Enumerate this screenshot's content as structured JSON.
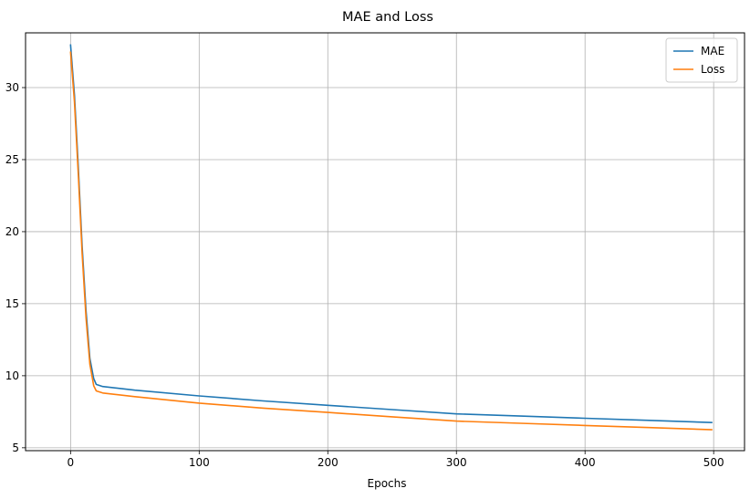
{
  "chart_data": {
    "type": "line",
    "title": "MAE and Loss",
    "xlabel": "Epochs",
    "ylabel": "",
    "xlim": [
      -35,
      524
    ],
    "ylim": [
      4.8,
      33.8
    ],
    "xticks": [
      0,
      100,
      200,
      300,
      400,
      500
    ],
    "yticks": [
      5,
      10,
      15,
      20,
      25,
      30
    ],
    "grid": true,
    "legend_position": "top-right",
    "series": [
      {
        "name": "MAE",
        "color": "#1f77b4",
        "points": [
          [
            0,
            33.0
          ],
          [
            3,
            29.5
          ],
          [
            6,
            24.5
          ],
          [
            9,
            19.0
          ],
          [
            12,
            14.5
          ],
          [
            15,
            11.2
          ],
          [
            18,
            9.8
          ],
          [
            20,
            9.4
          ],
          [
            25,
            9.25
          ],
          [
            50,
            9.0
          ],
          [
            100,
            8.6
          ],
          [
            150,
            8.25
          ],
          [
            200,
            7.95
          ],
          [
            250,
            7.65
          ],
          [
            300,
            7.35
          ],
          [
            350,
            7.2
          ],
          [
            400,
            7.05
          ],
          [
            450,
            6.9
          ],
          [
            499,
            6.75
          ]
        ]
      },
      {
        "name": "Loss",
        "color": "#ff7f0e",
        "points": [
          [
            0,
            32.5
          ],
          [
            3,
            29.0
          ],
          [
            6,
            24.0
          ],
          [
            9,
            18.5
          ],
          [
            12,
            14.0
          ],
          [
            15,
            10.8
          ],
          [
            18,
            9.3
          ],
          [
            20,
            8.95
          ],
          [
            25,
            8.8
          ],
          [
            50,
            8.55
          ],
          [
            100,
            8.1
          ],
          [
            150,
            7.75
          ],
          [
            200,
            7.45
          ],
          [
            250,
            7.15
          ],
          [
            300,
            6.85
          ],
          [
            350,
            6.7
          ],
          [
            400,
            6.55
          ],
          [
            450,
            6.4
          ],
          [
            499,
            6.25
          ]
        ]
      }
    ]
  }
}
